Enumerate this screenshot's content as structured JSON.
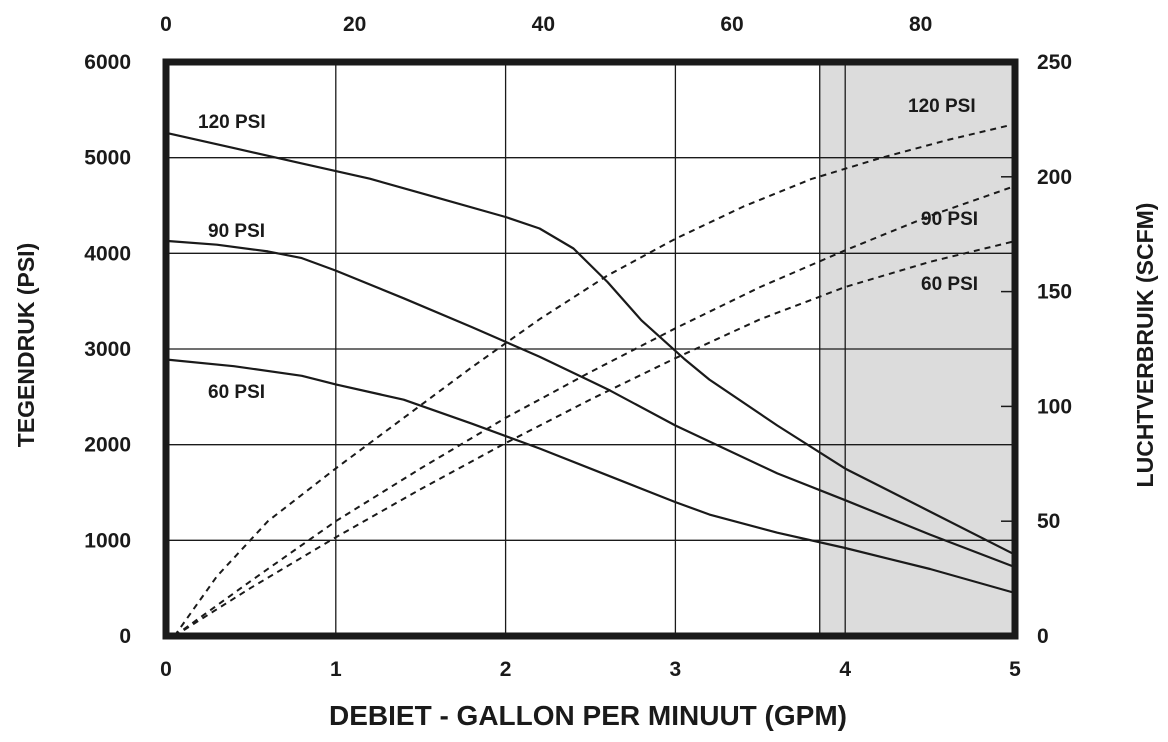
{
  "chart_data": {
    "type": "line",
    "xlabel": "DEBIET - GALLON PER MINUUT (GPM)",
    "ylabel": "TEGENDRUK (PSI)",
    "y2label": "LUCHTVERBRUIK (SCFM)",
    "x_ticks": [
      "0",
      "1",
      "2",
      "3",
      "4",
      "5"
    ],
    "x2_ticks": [
      "0",
      "20",
      "40",
      "60",
      "80"
    ],
    "y_ticks": [
      "0",
      "1000",
      "2000",
      "3000",
      "4000",
      "5000",
      "6000"
    ],
    "y2_ticks": [
      "0",
      "50",
      "100",
      "150",
      "200",
      "250"
    ],
    "xlim": [
      0,
      5
    ],
    "x2lim": [
      0,
      90
    ],
    "ylim": [
      0,
      6000
    ],
    "y2lim": [
      0,
      250
    ],
    "shaded_region_x": [
      3.85,
      5
    ],
    "colors": {
      "line": "#1a1a1a",
      "grid": "#1a1a1a",
      "shade": "#dcdcdc",
      "text": "#1a1a1a"
    },
    "series": [
      {
        "name": "120 PSI",
        "axis": "left",
        "style": "solid",
        "x": [
          0,
          0.4,
          0.8,
          1.2,
          1.6,
          2.0,
          2.2,
          2.4,
          2.6,
          2.8,
          3.05,
          3.2,
          3.6,
          4.0,
          4.5,
          5.0
        ],
        "y": [
          5260,
          5100,
          4940,
          4780,
          4580,
          4380,
          4260,
          4050,
          3700,
          3300,
          2900,
          2680,
          2200,
          1750,
          1300,
          850
        ]
      },
      {
        "name": "90 PSI",
        "axis": "left",
        "style": "solid",
        "x": [
          0,
          0.3,
          0.6,
          0.8,
          1.0,
          1.4,
          1.8,
          2.2,
          2.6,
          3.0,
          3.6,
          4.0,
          4.5,
          5.0
        ],
        "y": [
          4130,
          4090,
          4020,
          3950,
          3820,
          3530,
          3230,
          2920,
          2580,
          2200,
          1700,
          1420,
          1060,
          720
        ]
      },
      {
        "name": "60 PSI",
        "axis": "left",
        "style": "solid",
        "x": [
          0,
          0.4,
          0.8,
          1.0,
          1.4,
          1.8,
          2.2,
          2.6,
          3.0,
          3.2,
          3.6,
          4.0,
          4.5,
          5.0
        ],
        "y": [
          2890,
          2820,
          2720,
          2630,
          2470,
          2220,
          1960,
          1680,
          1400,
          1270,
          1080,
          920,
          700,
          450
        ]
      },
      {
        "name": "120 PSI",
        "axis": "right",
        "style": "dashed",
        "x": [
          0.05,
          0.3,
          0.6,
          1.0,
          1.4,
          1.8,
          2.2,
          2.6,
          3.0,
          3.4,
          3.8,
          4.2,
          4.6,
          5.0
        ],
        "y": [
          0,
          26,
          50,
          73,
          95,
          117,
          138,
          157,
          173,
          187,
          199,
          208,
          216,
          223
        ]
      },
      {
        "name": "90 PSI",
        "axis": "right",
        "style": "dashed",
        "x": [
          0.05,
          0.5,
          1.0,
          1.5,
          2.0,
          2.5,
          3.0,
          3.5,
          4.0,
          4.5,
          5.0
        ],
        "y": [
          0,
          24,
          50,
          73,
          95,
          115,
          134,
          152,
          168,
          183,
          196
        ]
      },
      {
        "name": "60 PSI",
        "axis": "right",
        "style": "dashed",
        "x": [
          0.05,
          0.5,
          1.0,
          1.5,
          2.0,
          2.5,
          3.0,
          3.5,
          4.0,
          4.5,
          5.0
        ],
        "y": [
          0,
          21,
          43,
          64,
          84,
          103,
          121,
          138,
          152,
          163,
          172
        ]
      }
    ]
  }
}
